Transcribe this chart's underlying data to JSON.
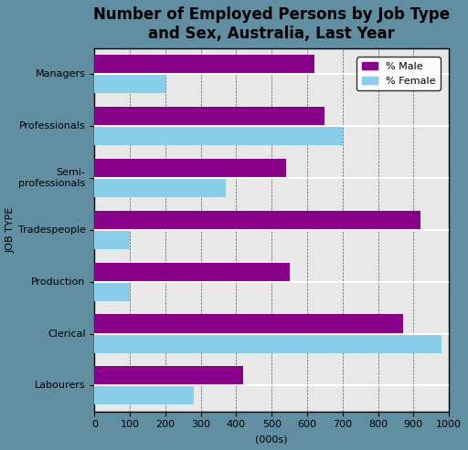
{
  "title": "Number of Employed Persons by Job Type\nand Sex, Australia, Last Year",
  "categories": [
    "Managers",
    "Professionals",
    "Semi-\nprofessionals",
    "Tradespeople",
    "Production",
    "Clerical",
    "Labourers"
  ],
  "male_values": [
    620,
    650,
    540,
    920,
    550,
    870,
    420
  ],
  "female_values": [
    200,
    700,
    370,
    100,
    100,
    980,
    280
  ],
  "male_color": "#8B008B",
  "female_color": "#87CEEB",
  "xlabel": "(000s)",
  "ylabel": "JOB TYPE",
  "xlim": [
    0,
    1000
  ],
  "xticks": [
    0,
    100,
    200,
    300,
    400,
    500,
    600,
    700,
    800,
    900,
    1000
  ],
  "bar_height": 0.36,
  "plot_bg": "#e8e8e8",
  "fig_bg": "#5f8fa0",
  "legend_male": "% Male",
  "legend_female": "% Female",
  "title_fontsize": 12,
  "label_fontsize": 8,
  "tick_fontsize": 8,
  "legend_fontsize": 8,
  "ylabel_fontsize": 8
}
